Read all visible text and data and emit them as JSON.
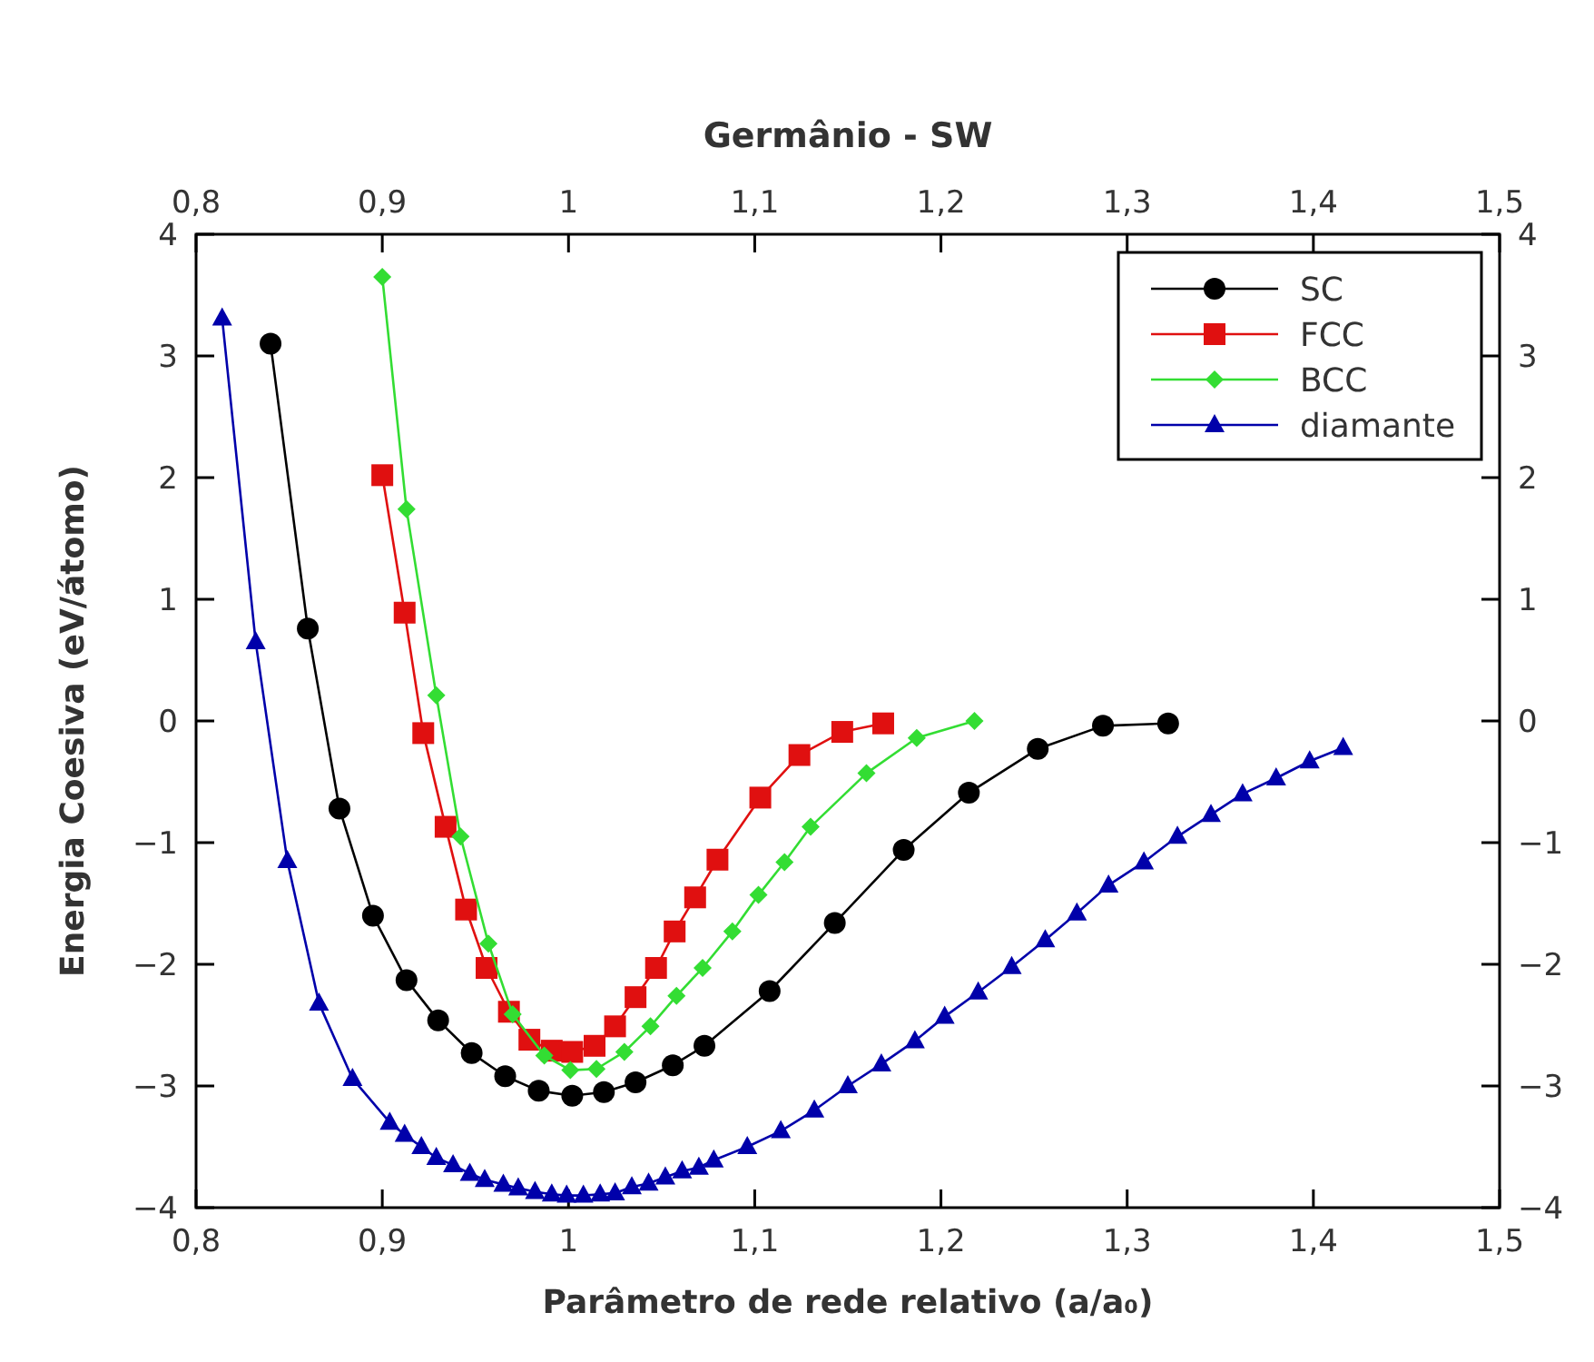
{
  "chart_data": {
    "type": "line",
    "title": "Germânio - SW",
    "xlabel": "Parâmetro de rede relativo (a/a₀)",
    "ylabel": "Energia Coesiva (eV/átomo)",
    "xlim": [
      0.8,
      1.5
    ],
    "xticks": [
      {
        "value": 0.8,
        "label": "0,8"
      },
      {
        "value": 0.9,
        "label": "0,9"
      },
      1,
      {
        "value": 1.1,
        "label": "1,1"
      },
      {
        "value": 1.2,
        "label": "1,2"
      },
      {
        "value": 1.3,
        "label": "1,3"
      },
      {
        "value": 1.4,
        "label": "1,4"
      },
      {
        "value": 1.5,
        "label": "1,5"
      }
    ],
    "x2lim": [
      0.8,
      1.5
    ],
    "x2ticks": [
      {
        "value": 0.8,
        "label": "0,8"
      },
      {
        "value": 0.9,
        "label": "0,9"
      },
      1,
      {
        "value": 1.1,
        "label": "1,1"
      },
      {
        "value": 1.2,
        "label": "1,2"
      },
      {
        "value": 1.3,
        "label": "1,3"
      },
      {
        "value": 1.4,
        "label": "1,4"
      },
      {
        "value": 1.5,
        "label": "1,5"
      }
    ],
    "ylim": [
      -4,
      4
    ],
    "yticks": [
      {
        "value": -4,
        "label": "−4"
      },
      {
        "value": -3,
        "label": "−3"
      },
      {
        "value": -2,
        "label": "−2"
      },
      {
        "value": -1,
        "label": "−1"
      },
      0,
      1,
      2,
      3,
      4
    ],
    "y2lim": [
      -4,
      4
    ],
    "y2ticks": [
      {
        "value": -4,
        "label": "−4"
      },
      {
        "value": -3,
        "label": "−3"
      },
      {
        "value": -2,
        "label": "−2"
      },
      {
        "value": -1,
        "label": "−1"
      },
      0,
      1,
      2,
      3,
      4
    ],
    "legend": "top right",
    "series": [
      {
        "name": "SC",
        "color": "#000000",
        "marker": "circle",
        "x": [
          0.84,
          0.86,
          0.877,
          0.895,
          0.913,
          0.93,
          0.948,
          0.966,
          0.984,
          1.002,
          1.019,
          1.036,
          1.056,
          1.073,
          1.108,
          1.143,
          1.18,
          1.215,
          1.252,
          1.287,
          1.322
        ],
        "values": [
          3.1,
          0.76,
          -0.72,
          -1.6,
          -2.13,
          -2.46,
          -2.73,
          -2.92,
          -3.04,
          -3.08,
          -3.05,
          -2.97,
          -2.83,
          -2.67,
          -2.22,
          -1.66,
          -1.06,
          -0.59,
          -0.23,
          -0.04,
          -0.02
        ]
      },
      {
        "name": "FCC",
        "color": "#e01010",
        "marker": "square",
        "x": [
          0.9,
          0.912,
          0.922,
          0.934,
          0.945,
          0.956,
          0.968,
          0.979,
          0.991,
          1.002,
          1.014,
          1.025,
          1.036,
          1.047,
          1.057,
          1.068,
          1.08,
          1.103,
          1.124,
          1.147,
          1.169
        ],
        "values": [
          2.02,
          0.89,
          -0.1,
          -0.87,
          -1.55,
          -2.03,
          -2.39,
          -2.62,
          -2.71,
          -2.72,
          -2.67,
          -2.51,
          -2.27,
          -2.03,
          -1.73,
          -1.45,
          -1.14,
          -0.63,
          -0.28,
          -0.09,
          -0.02
        ]
      },
      {
        "name": "BCC",
        "color": "#33dd33",
        "marker": "diamond",
        "x": [
          0.9,
          0.913,
          0.929,
          0.942,
          0.957,
          0.97,
          0.987,
          1.001,
          1.015,
          1.03,
          1.044,
          1.058,
          1.072,
          1.088,
          1.102,
          1.116,
          1.13,
          1.16,
          1.187,
          1.218
        ],
        "values": [
          3.65,
          1.74,
          0.21,
          -0.95,
          -1.83,
          -2.41,
          -2.75,
          -2.87,
          -2.86,
          -2.72,
          -2.51,
          -2.26,
          -2.03,
          -1.73,
          -1.43,
          -1.16,
          -0.87,
          -0.43,
          -0.14,
          0.0
        ]
      },
      {
        "name": "diamante",
        "color": "#0000aa",
        "marker": "triangle",
        "x": [
          0.814,
          0.832,
          0.849,
          0.866,
          0.884,
          0.904,
          0.912,
          0.921,
          0.929,
          0.938,
          0.947,
          0.955,
          0.965,
          0.973,
          0.982,
          0.991,
          0.999,
          1.008,
          1.017,
          1.025,
          1.034,
          1.043,
          1.052,
          1.061,
          1.07,
          1.078,
          1.096,
          1.114,
          1.132,
          1.15,
          1.168,
          1.186,
          1.202,
          1.22,
          1.238,
          1.256,
          1.273,
          1.29,
          1.309,
          1.327,
          1.345,
          1.362,
          1.38,
          1.398,
          1.416
        ],
        "values": [
          3.31,
          0.65,
          -1.15,
          -2.32,
          -2.94,
          -3.3,
          -3.4,
          -3.5,
          -3.59,
          -3.65,
          -3.72,
          -3.77,
          -3.81,
          -3.84,
          -3.87,
          -3.89,
          -3.9,
          -3.9,
          -3.89,
          -3.88,
          -3.83,
          -3.8,
          -3.75,
          -3.7,
          -3.67,
          -3.61,
          -3.5,
          -3.37,
          -3.2,
          -3.0,
          -2.82,
          -2.63,
          -2.43,
          -2.23,
          -2.02,
          -1.8,
          -1.58,
          -1.35,
          -1.16,
          -0.95,
          -0.77,
          -0.6,
          -0.47,
          -0.33,
          -0.22
        ]
      }
    ]
  }
}
